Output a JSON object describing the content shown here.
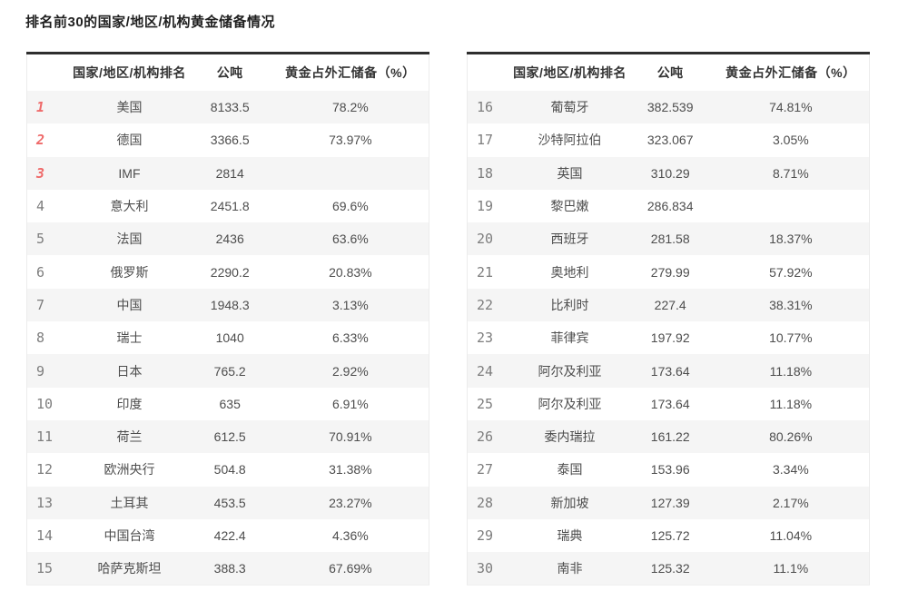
{
  "title": "排名前30的国家/地区/机构黄金储备情况",
  "headers": {
    "country": "国家/地区/机构排名",
    "tonnes": "公吨",
    "pct": "黄金占外汇储备（%）"
  },
  "tables": [
    {
      "id": "ranks-1-15",
      "rows": [
        {
          "rank": "1",
          "hot": true,
          "name": "美国",
          "tonnes": "8133.5",
          "pct": "78.2%"
        },
        {
          "rank": "2",
          "hot": true,
          "name": "德国",
          "tonnes": "3366.5",
          "pct": "73.97%"
        },
        {
          "rank": "3",
          "hot": true,
          "name": "IMF",
          "tonnes": "2814",
          "pct": ""
        },
        {
          "rank": "4",
          "hot": false,
          "name": "意大利",
          "tonnes": "2451.8",
          "pct": "69.6%"
        },
        {
          "rank": "5",
          "hot": false,
          "name": "法国",
          "tonnes": "2436",
          "pct": "63.6%"
        },
        {
          "rank": "6",
          "hot": false,
          "name": "俄罗斯",
          "tonnes": "2290.2",
          "pct": "20.83%"
        },
        {
          "rank": "7",
          "hot": false,
          "name": "中国",
          "tonnes": "1948.3",
          "pct": "3.13%"
        },
        {
          "rank": "8",
          "hot": false,
          "name": "瑞士",
          "tonnes": "1040",
          "pct": "6.33%"
        },
        {
          "rank": "9",
          "hot": false,
          "name": "日本",
          "tonnes": "765.2",
          "pct": "2.92%"
        },
        {
          "rank": "10",
          "hot": false,
          "name": "印度",
          "tonnes": "635",
          "pct": "6.91%"
        },
        {
          "rank": "11",
          "hot": false,
          "name": "荷兰",
          "tonnes": "612.5",
          "pct": "70.91%"
        },
        {
          "rank": "12",
          "hot": false,
          "name": "欧洲央行",
          "tonnes": "504.8",
          "pct": "31.38%"
        },
        {
          "rank": "13",
          "hot": false,
          "name": "土耳其",
          "tonnes": "453.5",
          "pct": "23.27%"
        },
        {
          "rank": "14",
          "hot": false,
          "name": "中国台湾",
          "tonnes": "422.4",
          "pct": "4.36%"
        },
        {
          "rank": "15",
          "hot": false,
          "name": "哈萨克斯坦",
          "tonnes": "388.3",
          "pct": "67.69%"
        }
      ]
    },
    {
      "id": "ranks-16-30",
      "rows": [
        {
          "rank": "16",
          "hot": false,
          "name": "葡萄牙",
          "tonnes": "382.539",
          "pct": "74.81%"
        },
        {
          "rank": "17",
          "hot": false,
          "name": "沙特阿拉伯",
          "tonnes": "323.067",
          "pct": "3.05%"
        },
        {
          "rank": "18",
          "hot": false,
          "name": "英国",
          "tonnes": "310.29",
          "pct": "8.71%"
        },
        {
          "rank": "19",
          "hot": false,
          "name": "黎巴嫩",
          "tonnes": "286.834",
          "pct": ""
        },
        {
          "rank": "20",
          "hot": false,
          "name": "西班牙",
          "tonnes": "281.58",
          "pct": "18.37%"
        },
        {
          "rank": "21",
          "hot": false,
          "name": "奥地利",
          "tonnes": "279.99",
          "pct": "57.92%"
        },
        {
          "rank": "22",
          "hot": false,
          "name": "比利时",
          "tonnes": "227.4",
          "pct": "38.31%"
        },
        {
          "rank": "23",
          "hot": false,
          "name": "菲律宾",
          "tonnes": "197.92",
          "pct": "10.77%"
        },
        {
          "rank": "24",
          "hot": false,
          "name": "阿尔及利亚",
          "tonnes": "173.64",
          "pct": "11.18%"
        },
        {
          "rank": "25",
          "hot": false,
          "name": "阿尔及利亚",
          "tonnes": "173.64",
          "pct": "11.18%"
        },
        {
          "rank": "26",
          "hot": false,
          "name": "委内瑞拉",
          "tonnes": "161.22",
          "pct": "80.26%"
        },
        {
          "rank": "27",
          "hot": false,
          "name": "泰国",
          "tonnes": "153.96",
          "pct": "3.34%"
        },
        {
          "rank": "28",
          "hot": false,
          "name": "新加坡",
          "tonnes": "127.39",
          "pct": "2.17%"
        },
        {
          "rank": "29",
          "hot": false,
          "name": "瑞典",
          "tonnes": "125.72",
          "pct": "11.04%"
        },
        {
          "rank": "30",
          "hot": false,
          "name": "南非",
          "tonnes": "125.32",
          "pct": "11.1%"
        }
      ]
    }
  ],
  "colors": {
    "rank_top3": "#ef6a6a",
    "rank_normal": "#7d7d7d",
    "stripe": "#f5f5f5",
    "table_top_border": "#2e2e2e",
    "body_text": "#4d4d4d",
    "header_text": "#333333"
  }
}
